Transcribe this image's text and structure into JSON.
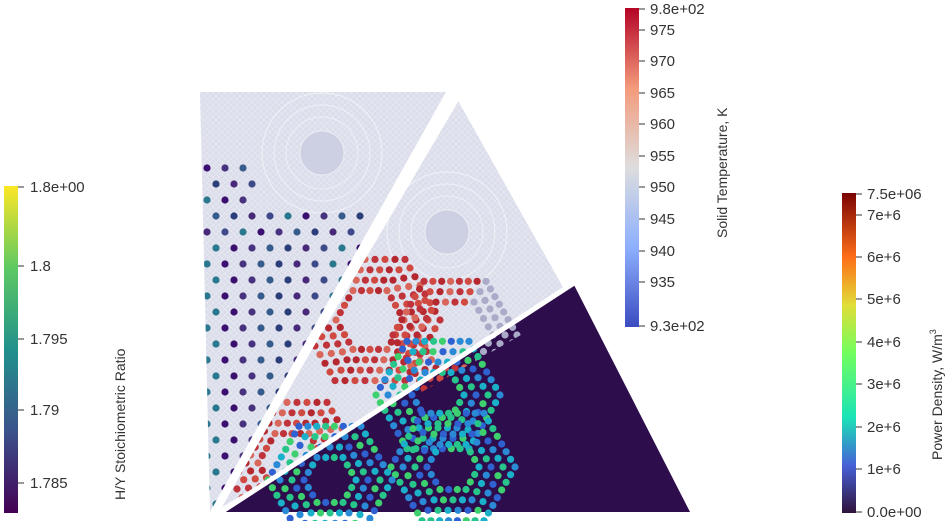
{
  "colorbars": {
    "hy": {
      "title": "H/Y Stoichiometric Ratio",
      "max_label": "1.8e+00",
      "ticks": [
        "1.8",
        "1.795",
        "1.79",
        "1.785"
      ],
      "colormap": "viridis"
    },
    "temp": {
      "title": "Solid Temperature, K",
      "max_label": "9.8e+02",
      "min_label": "9.3e+02",
      "ticks": [
        "975",
        "970",
        "965",
        "960",
        "955",
        "950",
        "945",
        "940",
        "935"
      ],
      "colormap": "coolwarm"
    },
    "power": {
      "title_main": "Power Density, W/m",
      "title_sup": "3",
      "max_label": "7.5e+06",
      "min_label": "0.0e+00",
      "ticks": [
        "7e+6",
        "6e+6",
        "5e+6",
        "4e+6",
        "3e+6",
        "2e+6",
        "1e+6"
      ],
      "colormap": "turbo"
    }
  },
  "colors": {
    "mesh_fill": "#dcdeeb",
    "power_region_fill": "#2d0d4c",
    "separator": "#ffffff"
  }
}
